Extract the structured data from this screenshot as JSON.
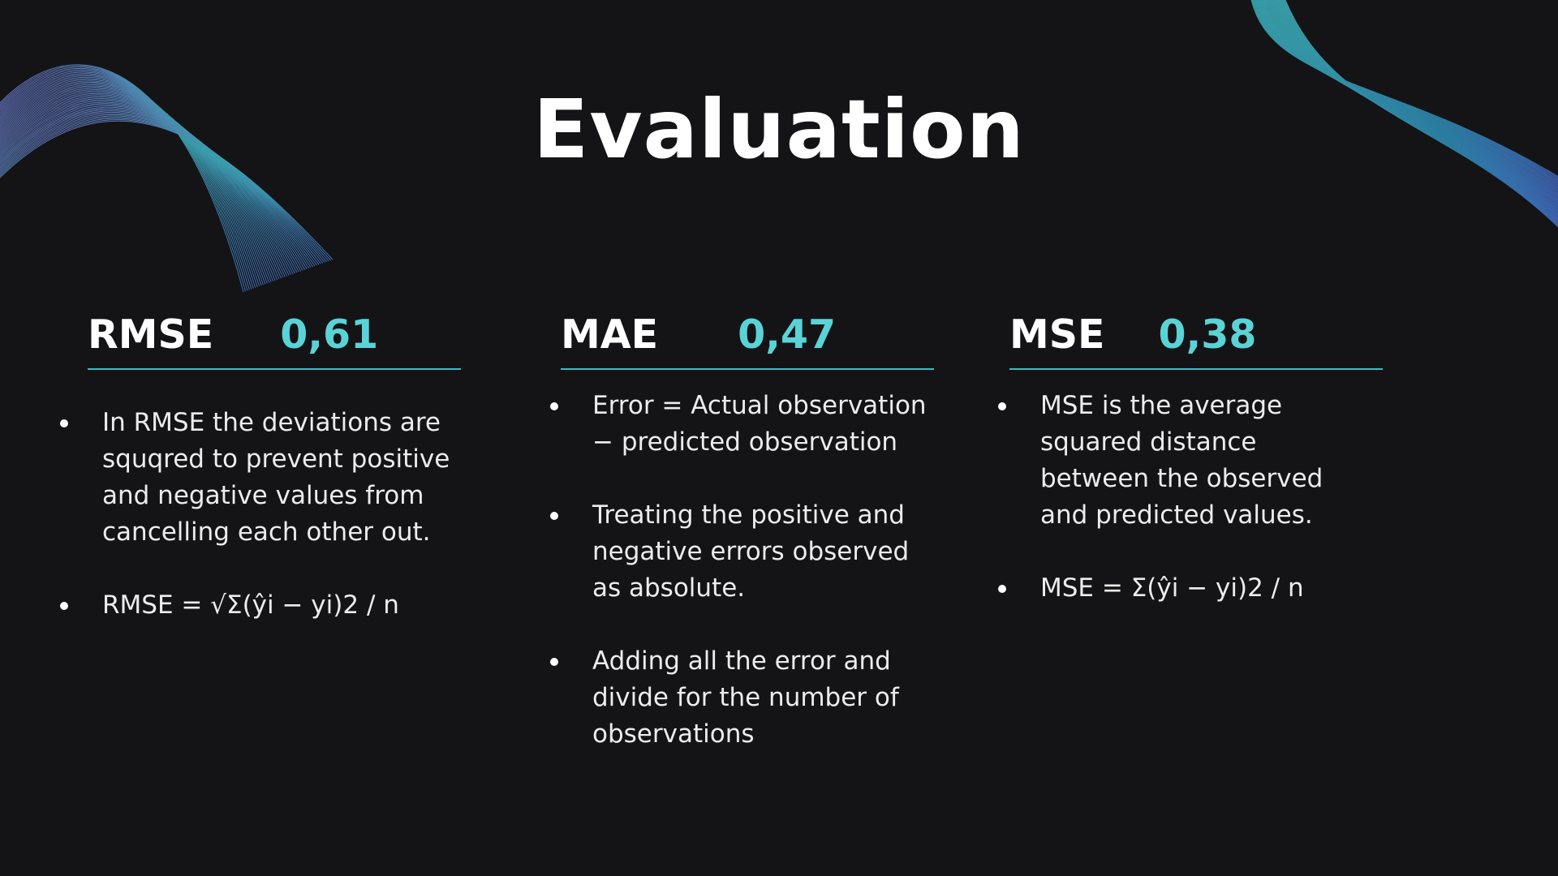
{
  "slide": {
    "title": "Evaluation"
  },
  "metrics": [
    {
      "name": "RMSE",
      "value": "0,61",
      "bullets": [
        "In RMSE the deviations are squqred to prevent positive and negative values from cancelling each other out.",
        "RMSE = √Σ(ŷi − yi)2 / n"
      ]
    },
    {
      "name": "MAE",
      "value": "0,47",
      "bullets": [
        "Error = Actual observation − predicted observation",
        "Treating the positive and negative errors observed as absolute.",
        "Adding all the error and divide for the number of observations"
      ]
    },
    {
      "name": "MSE",
      "value": "0,38",
      "bullets": [
        "MSE is the average squared distance between the observed and predicted values.",
        "MSE = Σ(ŷi − yi)2 / n"
      ]
    }
  ],
  "colors": {
    "background": "#141416",
    "accent": "#5ad3d7",
    "rule": "#3fb9c3",
    "text": "#ffffff"
  }
}
